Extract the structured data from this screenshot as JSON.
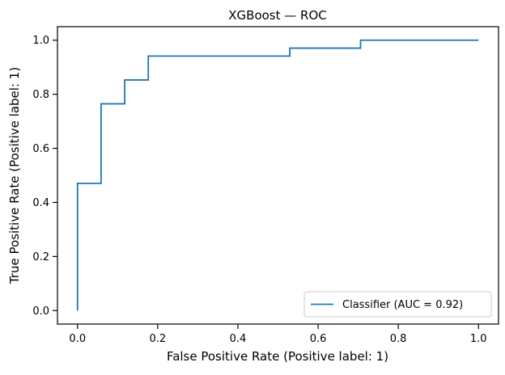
{
  "chart_data": {
    "type": "line",
    "title": "XGBoost — ROC",
    "xlabel": "False Positive Rate (Positive label: 1)",
    "ylabel": "True Positive Rate (Positive label: 1)",
    "xlim": [
      -0.05,
      1.05
    ],
    "ylim": [
      -0.05,
      1.05
    ],
    "xticks": [
      0.0,
      0.2,
      0.4,
      0.6,
      0.8,
      1.0
    ],
    "yticks": [
      0.0,
      0.2,
      0.4,
      0.6,
      0.8,
      1.0
    ],
    "xtick_labels": [
      "0.0",
      "0.2",
      "0.4",
      "0.6",
      "0.8",
      "1.0"
    ],
    "ytick_labels": [
      "0.0",
      "0.2",
      "0.4",
      "0.6",
      "0.8",
      "1.0"
    ],
    "grid": false,
    "legend_position": "lower-right",
    "series": [
      {
        "name": "Classifier (AUC = 0.92)",
        "color": "#1f77b4",
        "x": [
          0.0,
          0.0,
          0.0588,
          0.0588,
          0.1176,
          0.1176,
          0.1765,
          0.1765,
          0.5294,
          0.5294,
          0.7059,
          0.7059,
          1.0
        ],
        "y": [
          0.0,
          0.4706,
          0.4706,
          0.7647,
          0.7647,
          0.8529,
          0.8529,
          0.9412,
          0.9412,
          0.9706,
          0.9706,
          1.0,
          1.0
        ]
      }
    ]
  }
}
